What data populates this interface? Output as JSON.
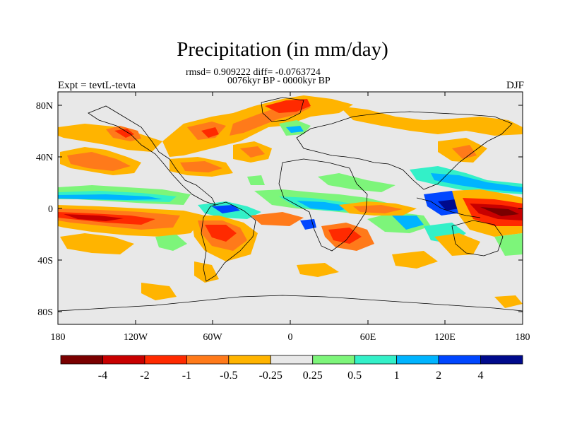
{
  "title": "Precipitation (in mm/day)",
  "stats_line": "rmsd= 0.909222 diff= -0.0763724",
  "period_line": "0076kyr BP - 0000kyr BP",
  "experiment": "Expt = tevtL-tevta",
  "season": "DJF",
  "axes": {
    "lat_ticks": [
      "80N",
      "40N",
      "0",
      "40S",
      "80S"
    ],
    "lon_ticks": [
      "180",
      "120W",
      "60W",
      "0",
      "60E",
      "120E",
      "180"
    ]
  },
  "colorbar": {
    "labels": [
      "-4",
      "-2",
      "-1",
      "-0.5",
      "-0.25",
      "0.25",
      "0.5",
      "1",
      "2",
      "4"
    ],
    "colors": [
      "#7a0000",
      "#c80000",
      "#ff2a00",
      "#ff7a1a",
      "#ffb400",
      "#e8e8e8",
      "#7df57a",
      "#33f0c8",
      "#00b4ff",
      "#0046ff",
      "#000a8c"
    ]
  },
  "colors": {
    "background_zero": "#e8e8e8",
    "coastline": "#000000"
  }
}
